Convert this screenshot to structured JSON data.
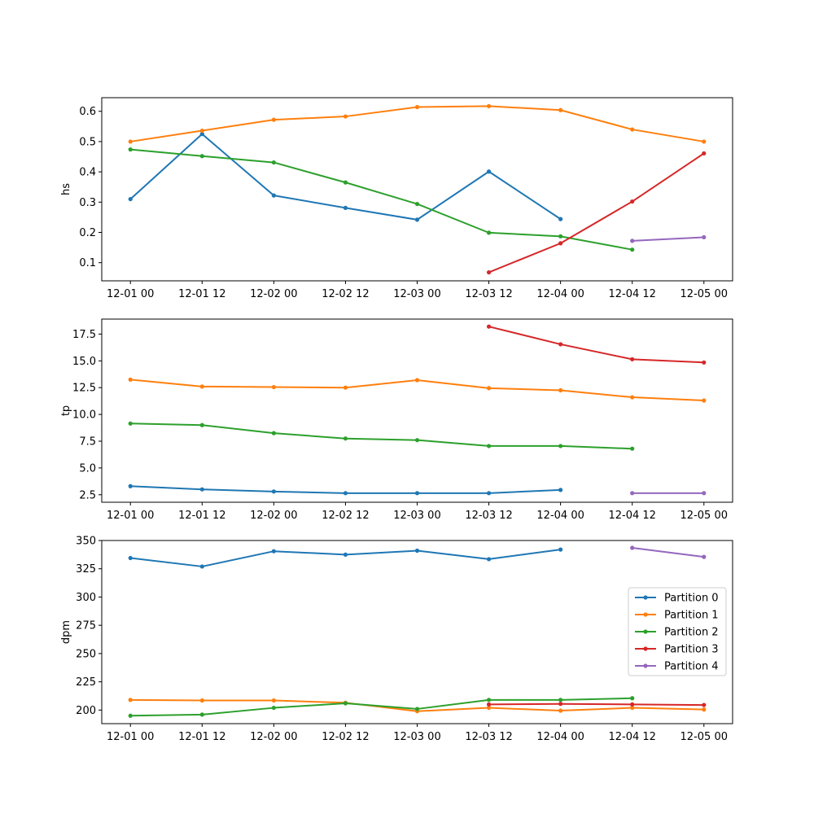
{
  "chart_data": [
    {
      "type": "line",
      "ylabel": "hs",
      "xlabel": "",
      "title": "",
      "ylim": [
        0.04,
        0.645
      ],
      "yticks": [
        0.1,
        0.2,
        0.3,
        0.4,
        0.5,
        0.6
      ],
      "ytick_labels": [
        "0.1",
        "0.2",
        "0.3",
        "0.4",
        "0.5",
        "0.6"
      ],
      "x_ticks": [
        0,
        12,
        24,
        36,
        48,
        60,
        72,
        84,
        96
      ],
      "x_tick_labels": [
        "12-01 00",
        "12-01 12",
        "12-02 00",
        "12-02 12",
        "12-03 00",
        "12-03 12",
        "12-04 00",
        "12-04 12",
        "12-05 00"
      ],
      "grid": false,
      "series": [
        {
          "name": "Partition 0",
          "color": "#1f77b4",
          "x": [
            0,
            12,
            24,
            36,
            48,
            60,
            72
          ],
          "values": [
            0.31,
            0.525,
            0.322,
            0.281,
            0.242,
            0.401,
            0.244
          ]
        },
        {
          "name": "Partition 1",
          "color": "#ff7f0e",
          "x": [
            0,
            12,
            24,
            36,
            48,
            60,
            72,
            84,
            96
          ],
          "values": [
            0.5,
            0.536,
            0.572,
            0.583,
            0.614,
            0.617,
            0.604,
            0.54,
            0.5
          ]
        },
        {
          "name": "Partition 2",
          "color": "#2ca02c",
          "x": [
            0,
            12,
            24,
            36,
            48,
            60,
            72,
            84
          ],
          "values": [
            0.474,
            0.452,
            0.431,
            0.365,
            0.294,
            0.199,
            0.187,
            0.143
          ]
        },
        {
          "name": "Partition 3",
          "color": "#d62728",
          "x": [
            60,
            72,
            84,
            96
          ],
          "values": [
            0.068,
            0.164,
            0.302,
            0.461
          ]
        },
        {
          "name": "Partition 4",
          "color": "#9467bd",
          "x": [
            84,
            96
          ],
          "values": [
            0.172,
            0.184
          ]
        }
      ]
    },
    {
      "type": "line",
      "ylabel": "tp",
      "xlabel": "",
      "title": "",
      "ylim": [
        1.8,
        18.9
      ],
      "yticks": [
        2.5,
        5.0,
        7.5,
        10.0,
        12.5,
        15.0,
        17.5
      ],
      "ytick_labels": [
        "2.5",
        "5.0",
        "7.5",
        "10.0",
        "12.5",
        "15.0",
        "17.5"
      ],
      "x_ticks": [
        0,
        12,
        24,
        36,
        48,
        60,
        72,
        84,
        96
      ],
      "x_tick_labels": [
        "12-01 00",
        "12-01 12",
        "12-02 00",
        "12-02 12",
        "12-03 00",
        "12-03 12",
        "12-04 00",
        "12-04 12",
        "12-05 00"
      ],
      "grid": false,
      "series": [
        {
          "name": "Partition 0",
          "color": "#1f77b4",
          "x": [
            0,
            12,
            24,
            36,
            48,
            60,
            72
          ],
          "values": [
            3.3,
            3.0,
            2.8,
            2.65,
            2.65,
            2.65,
            2.95
          ]
        },
        {
          "name": "Partition 1",
          "color": "#ff7f0e",
          "x": [
            0,
            12,
            24,
            36,
            48,
            60,
            72,
            84,
            96
          ],
          "values": [
            13.25,
            12.6,
            12.55,
            12.5,
            13.2,
            12.45,
            12.25,
            11.6,
            11.3
          ]
        },
        {
          "name": "Partition 2",
          "color": "#2ca02c",
          "x": [
            0,
            12,
            24,
            36,
            48,
            60,
            72,
            84
          ],
          "values": [
            9.15,
            9.0,
            8.25,
            7.75,
            7.6,
            7.05,
            7.05,
            6.8
          ]
        },
        {
          "name": "Partition 3",
          "color": "#d62728",
          "x": [
            60,
            72,
            84,
            96
          ],
          "values": [
            18.2,
            16.55,
            15.15,
            14.85
          ]
        },
        {
          "name": "Partition 4",
          "color": "#9467bd",
          "x": [
            84,
            96
          ],
          "values": [
            2.65,
            2.65
          ]
        }
      ]
    },
    {
      "type": "line",
      "ylabel": "dpm",
      "xlabel": "",
      "title": "",
      "ylim": [
        188,
        350
      ],
      "yticks": [
        200,
        225,
        250,
        275,
        300,
        325,
        350
      ],
      "ytick_labels": [
        "200",
        "225",
        "250",
        "275",
        "300",
        "325",
        "350"
      ],
      "x_ticks": [
        0,
        12,
        24,
        36,
        48,
        60,
        72,
        84,
        96
      ],
      "x_tick_labels": [
        "12-01 00",
        "12-01 12",
        "12-02 00",
        "12-02 12",
        "12-03 00",
        "12-03 12",
        "12-04 00",
        "12-04 12",
        "12-05 00"
      ],
      "grid": false,
      "legend": "center-right",
      "series": [
        {
          "name": "Partition 0",
          "color": "#1f77b4",
          "x": [
            0,
            12,
            24,
            36,
            48,
            60,
            72
          ],
          "values": [
            334.5,
            327.0,
            340.5,
            337.5,
            341.0,
            333.5,
            342.0
          ]
        },
        {
          "name": "Partition 1",
          "color": "#ff7f0e",
          "x": [
            0,
            12,
            24,
            36,
            48,
            60,
            72,
            84,
            96
          ],
          "values": [
            209.0,
            208.5,
            208.5,
            206.5,
            199.0,
            202.0,
            199.5,
            202.0,
            200.5
          ]
        },
        {
          "name": "Partition 2",
          "color": "#2ca02c",
          "x": [
            0,
            12,
            24,
            36,
            48,
            60,
            72,
            84
          ],
          "values": [
            195.0,
            196.0,
            202.0,
            206.0,
            201.0,
            209.0,
            209.0,
            210.5
          ]
        },
        {
          "name": "Partition 3",
          "color": "#d62728",
          "x": [
            60,
            72,
            84,
            96
          ],
          "values": [
            205.0,
            205.5,
            205.0,
            204.5
          ]
        },
        {
          "name": "Partition 4",
          "color": "#9467bd",
          "x": [
            84,
            96
          ],
          "values": [
            343.5,
            335.5
          ]
        }
      ]
    }
  ]
}
